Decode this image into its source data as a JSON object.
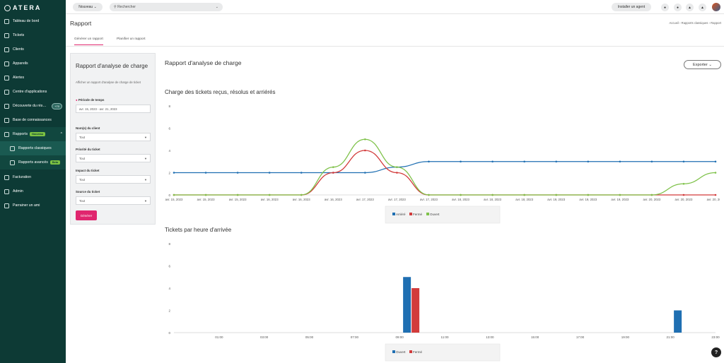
{
  "app": {
    "logo": "ATERA"
  },
  "sidebar": {
    "items": [
      {
        "label": "Tableau de bord",
        "icon": "dashboard-icon"
      },
      {
        "label": "Tickets",
        "icon": "ticket-icon"
      },
      {
        "label": "Clients",
        "icon": "clients-icon"
      },
      {
        "label": "Appareils",
        "icon": "devices-icon"
      },
      {
        "label": "Alertes",
        "icon": "alert-icon"
      },
      {
        "label": "Centre d'applications",
        "icon": "apps-icon"
      },
      {
        "label": "Découverte du rés…",
        "icon": "network-icon",
        "pill": "+70"
      },
      {
        "label": "Base de connaissances",
        "icon": "book-icon"
      },
      {
        "label": "Rapports",
        "icon": "reports-icon",
        "badge": "Nouveau"
      },
      {
        "label": "Rapports classiques",
        "icon": "chart-icon",
        "sub": true
      },
      {
        "label": "Rapports avancés",
        "icon": "advanced-reports-icon",
        "sub": true,
        "badge": "Beta"
      },
      {
        "label": "Facturation",
        "icon": "billing-icon"
      },
      {
        "label": "Admin",
        "icon": "admin-icon"
      },
      {
        "label": "Parrainer un ami",
        "icon": "gift-icon"
      }
    ]
  },
  "topbar": {
    "new_label": "Nouveau",
    "search_placeholder": "Rechercher",
    "install_agent": "Installer un agent"
  },
  "header": {
    "title": "Rapport",
    "breadcrumb": "Accueil  ›  Rapports classiques  ›  Rapport"
  },
  "tabs": [
    "Générer un rapport",
    "Planifier un rapport"
  ],
  "panel": {
    "title": "Rapport d'analyse de charge",
    "description": "Afficher un rapport d'analyse de charge de ticket",
    "period_label": "Période de temps",
    "period_value": "avr. 15, 2023 - avr. 21, 2023",
    "client_label": "Nom(s) du client",
    "client_value": "Tout",
    "priority_label": "Priorité du ticket",
    "priority_value": "Tout",
    "impact_label": "Impact du ticket",
    "impact_value": "Tout",
    "source_label": "Source du ticket",
    "source_value": "Tout",
    "generate": "Générer"
  },
  "report": {
    "title": "Rapport d'analyse de charge",
    "export": "Exporter"
  },
  "colors": {
    "blue": "#1f6fb2",
    "red": "#d23b3b",
    "green": "#7fc24a",
    "pink": "#e0266e"
  },
  "chart_data": [
    {
      "type": "line",
      "title": "Charge des tickets reçus, résolus et arriérés",
      "x": [
        "avr. 15, 2023",
        "avr. 15, 2023",
        "avr. 15, 2023",
        "avr. 16, 2023",
        "avr. 16, 2023",
        "avr. 16, 2023",
        "avr. 17, 2023",
        "avr. 17, 2023",
        "avr. 17, 2023",
        "avr. 18, 2023",
        "avr. 18, 2023",
        "avr. 18, 2023",
        "avr. 19, 2023",
        "avr. 19, 2023",
        "avr. 19, 2023",
        "avr. 20, 2023",
        "avr. 20, 2023",
        "avr. 20, 2023"
      ],
      "ylim": [
        0,
        8
      ],
      "yticks": [
        0,
        2,
        4,
        6,
        8
      ],
      "series": [
        {
          "name": "Arriéré",
          "color": "#1f6fb2",
          "values": [
            2,
            2,
            2,
            2,
            2,
            2,
            2,
            2.5,
            3,
            3,
            3,
            3,
            3,
            3,
            3,
            3,
            3,
            3
          ]
        },
        {
          "name": "Fermé",
          "color": "#d23b3b",
          "values": [
            0,
            0,
            0,
            0,
            0,
            2,
            4,
            2,
            0,
            0,
            0,
            0,
            0,
            0,
            0,
            0,
            0,
            0
          ]
        },
        {
          "name": "Ouvert",
          "color": "#7fc24a",
          "values": [
            0,
            0,
            0,
            0,
            0,
            2.5,
            5,
            2.5,
            0,
            0,
            0,
            0,
            0,
            0,
            0,
            0,
            1,
            2
          ]
        }
      ],
      "legend": "bottom-center",
      "grid": false
    },
    {
      "type": "bar",
      "title": "Tickets par heure d'arrivée",
      "categories": [
        "00:00",
        "01:00",
        "02:00",
        "03:00",
        "04:00",
        "05:00",
        "06:00",
        "07:00",
        "08:00",
        "09:00",
        "10:00",
        "11:00",
        "12:00",
        "13:00",
        "14:00",
        "15:00",
        "16:00",
        "17:00",
        "18:00",
        "19:00",
        "20:00",
        "21:00",
        "22:00",
        "23:00"
      ],
      "xticks": [
        "01:00",
        "03:00",
        "05:00",
        "07:00",
        "09:00",
        "11:00",
        "13:00",
        "15:00",
        "17:00",
        "19:00",
        "21:00",
        "23:00"
      ],
      "ylim": [
        0,
        8
      ],
      "yticks": [
        0,
        2,
        4,
        6,
        8
      ],
      "series": [
        {
          "name": "Ouvert",
          "color": "#1f6fb2",
          "values": [
            0,
            0,
            0,
            0,
            0,
            0,
            0,
            0,
            0,
            0,
            5,
            0,
            0,
            0,
            0,
            0,
            0,
            0,
            0,
            0,
            0,
            0,
            2,
            0
          ]
        },
        {
          "name": "Fermé",
          "color": "#d23b3b",
          "values": [
            0,
            0,
            0,
            0,
            0,
            0,
            0,
            0,
            0,
            0,
            4,
            0,
            0,
            0,
            0,
            0,
            0,
            0,
            0,
            0,
            0,
            0,
            0,
            0
          ]
        }
      ],
      "legend": "bottom-center",
      "grid": false
    }
  ]
}
